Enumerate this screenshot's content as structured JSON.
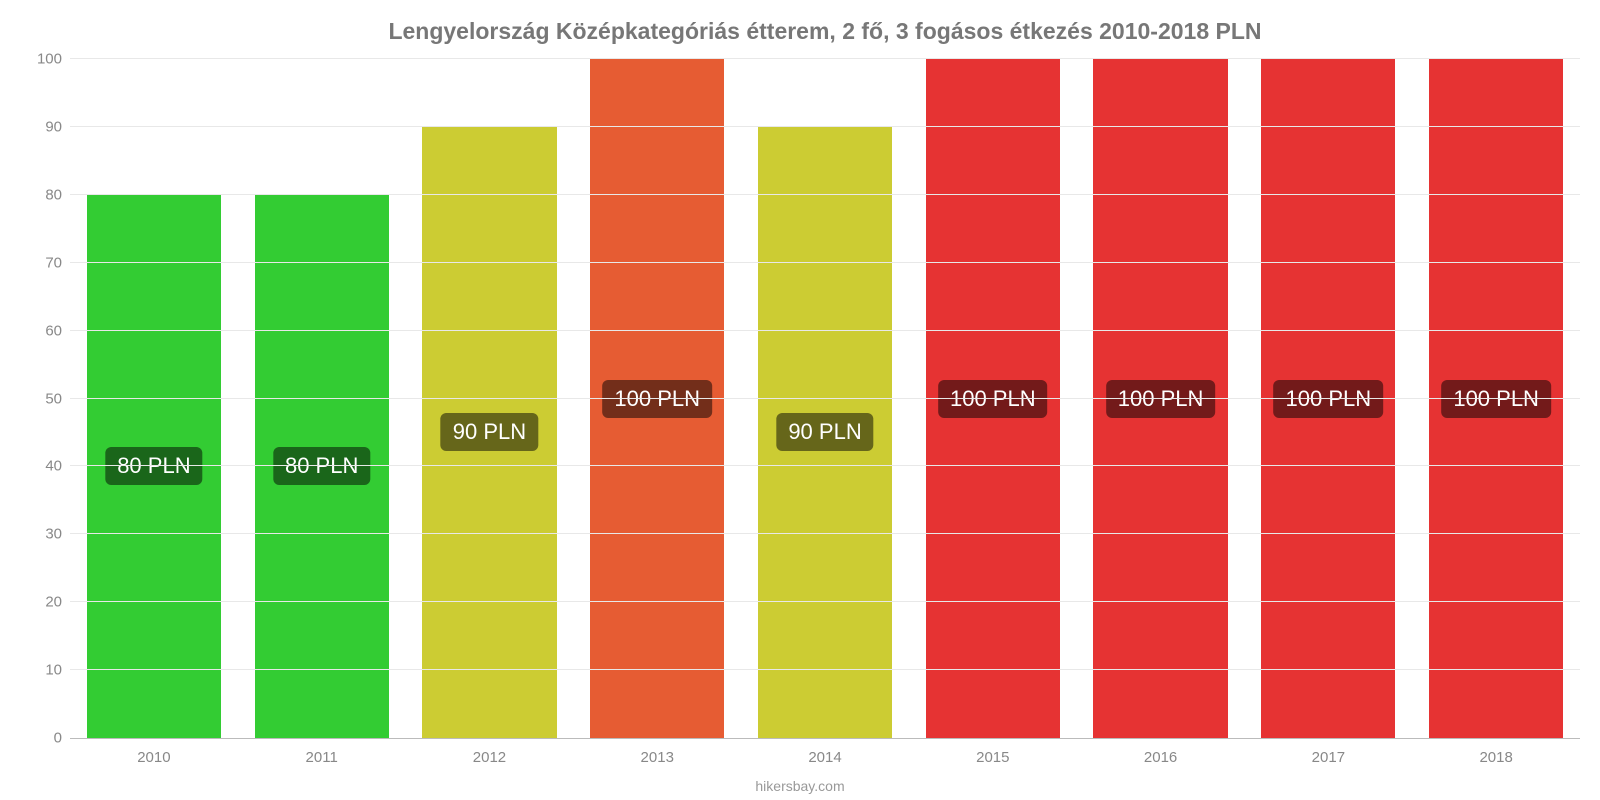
{
  "chart": {
    "type": "bar",
    "title": "Lengyelország Középkategóriás étterem, 2 fő, 3 fogásos étkezés 2010-2018 PLN",
    "title_fontsize": 23,
    "title_color": "#777777",
    "attribution": "hikersbay.com",
    "background_color": "#ffffff",
    "grid_color": "#e8e8e8",
    "axis_color": "#bbbbbb",
    "tick_label_color": "#888888",
    "tick_label_fontsize": 15,
    "ylim": [
      0,
      100
    ],
    "ytick_step": 10,
    "yticks": [
      0,
      10,
      20,
      30,
      40,
      50,
      60,
      70,
      80,
      90,
      100
    ],
    "categories": [
      "2010",
      "2011",
      "2012",
      "2013",
      "2014",
      "2015",
      "2016",
      "2017",
      "2018"
    ],
    "values": [
      80,
      80,
      90,
      100,
      90,
      100,
      100,
      100,
      100
    ],
    "value_labels": [
      "80 PLN",
      "80 PLN",
      "90 PLN",
      "100 PLN",
      "90 PLN",
      "100 PLN",
      "100 PLN",
      "100 PLN",
      "100 PLN"
    ],
    "bar_colors": [
      "#33cc33",
      "#33cc33",
      "#cccc33",
      "#e65c33",
      "#cccc33",
      "#e63333",
      "#e63333",
      "#e63333",
      "#e63333"
    ],
    "badge_colors": [
      "#1a661a",
      "#1a661a",
      "#66661a",
      "#732e1a",
      "#66661a",
      "#731a1a",
      "#731a1a",
      "#731a1a",
      "#731a1a"
    ],
    "bar_width_pct": 80,
    "badge_fontsize": 22
  }
}
